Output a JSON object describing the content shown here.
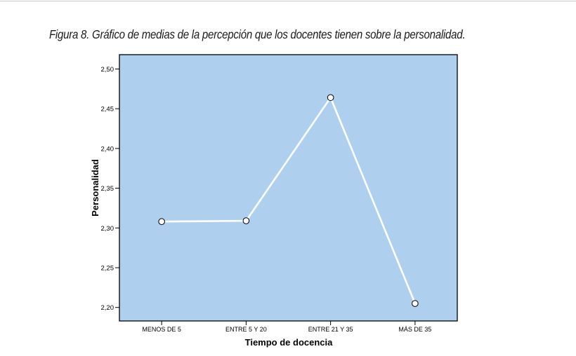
{
  "caption": "Figura 8. Gráfico de medias de la percepción que los docentes tienen sobre la personalidad.",
  "colors": {
    "plot_background": "#aed0ee",
    "line": "#ffffff",
    "marker_fill": "#ffffff",
    "marker_stroke": "#000000",
    "axis": "#000000"
  },
  "chart_data": {
    "type": "line",
    "title": "Figura 8. Gráfico de medias de la percepción que los docentes tienen sobre la personalidad.",
    "xlabel": "Tiempo de docencia",
    "ylabel": "Personalidad",
    "categories": [
      "MENOS DE 5",
      "ENTRE 5 Y 20",
      "ENTRE 21 Y 35",
      "MÁS DE 35"
    ],
    "series": [
      {
        "name": "Personalidad (media)",
        "values": [
          2.308,
          2.309,
          2.464,
          2.205
        ]
      }
    ],
    "yticks": [
      "2,20",
      "2,25",
      "2,30",
      "2,35",
      "2,40",
      "2,45",
      "2,50"
    ],
    "ylim": [
      2.183,
      2.518
    ],
    "grid": false,
    "legend": "none"
  }
}
